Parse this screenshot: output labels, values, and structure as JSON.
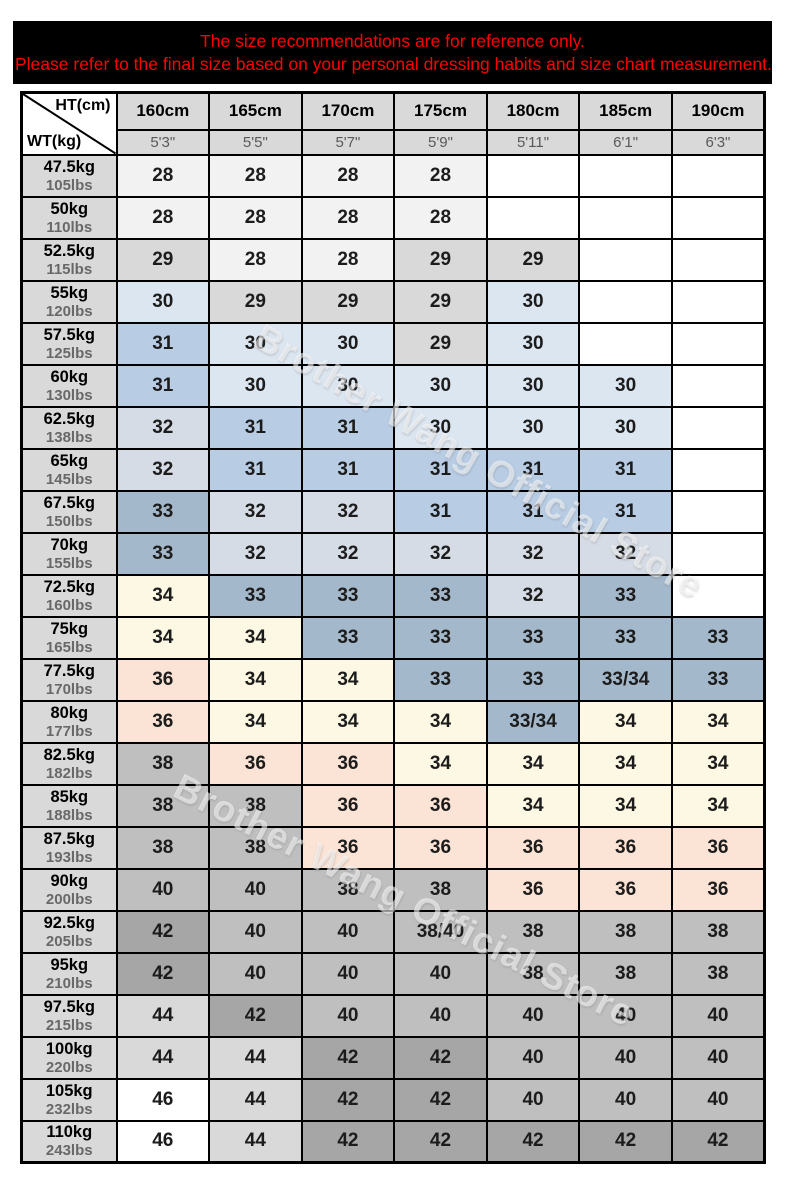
{
  "banner": {
    "line1": "The size recommendations are for reference only.",
    "line2": "Please refer to the final size based on your personal dressing habits and size chart measurement.",
    "bg": "#000000",
    "text_color": "#ff0000"
  },
  "watermark": {
    "text": "Brother Wang Official Store"
  },
  "chart_data": {
    "type": "table",
    "corner": {
      "top_right": "HT(cm)",
      "bottom_left": "WT(kg)"
    },
    "columns_cm": [
      "160cm",
      "165cm",
      "170cm",
      "175cm",
      "180cm",
      "185cm",
      "190cm"
    ],
    "columns_ft": [
      "5'3\"",
      "5'5\"",
      "5'7\"",
      "5'9\"",
      "5'11\"",
      "6'1\"",
      "6'3\""
    ],
    "rows": [
      {
        "kg": "47.5kg",
        "lbs": "105lbs",
        "sizes": [
          "28",
          "28",
          "28",
          "28",
          "",
          "",
          ""
        ]
      },
      {
        "kg": "50kg",
        "lbs": "110lbs",
        "sizes": [
          "28",
          "28",
          "28",
          "28",
          "",
          "",
          ""
        ]
      },
      {
        "kg": "52.5kg",
        "lbs": "115lbs",
        "sizes": [
          "29",
          "28",
          "28",
          "29",
          "29",
          "",
          ""
        ]
      },
      {
        "kg": "55kg",
        "lbs": "120lbs",
        "sizes": [
          "30",
          "29",
          "29",
          "29",
          "30",
          "",
          ""
        ]
      },
      {
        "kg": "57.5kg",
        "lbs": "125lbs",
        "sizes": [
          "31",
          "30",
          "30",
          "29",
          "30",
          "",
          ""
        ]
      },
      {
        "kg": "60kg",
        "lbs": "130lbs",
        "sizes": [
          "31",
          "30",
          "30",
          "30",
          "30",
          "30",
          ""
        ]
      },
      {
        "kg": "62.5kg",
        "lbs": "138lbs",
        "sizes": [
          "32",
          "31",
          "31",
          "30",
          "30",
          "30",
          ""
        ]
      },
      {
        "kg": "65kg",
        "lbs": "145lbs",
        "sizes": [
          "32",
          "31",
          "31",
          "31",
          "31",
          "31",
          ""
        ]
      },
      {
        "kg": "67.5kg",
        "lbs": "150lbs",
        "sizes": [
          "33",
          "32",
          "32",
          "31",
          "31",
          "31",
          ""
        ]
      },
      {
        "kg": "70kg",
        "lbs": "155lbs",
        "sizes": [
          "33",
          "32",
          "32",
          "32",
          "32",
          "32",
          ""
        ]
      },
      {
        "kg": "72.5kg",
        "lbs": "160lbs",
        "sizes": [
          "34",
          "33",
          "33",
          "33",
          "32",
          "33",
          ""
        ]
      },
      {
        "kg": "75kg",
        "lbs": "165lbs",
        "sizes": [
          "34",
          "34",
          "33",
          "33",
          "33",
          "33",
          "33"
        ]
      },
      {
        "kg": "77.5kg",
        "lbs": "170lbs",
        "sizes": [
          "36",
          "34",
          "34",
          "33",
          "33",
          "33/34",
          "33"
        ]
      },
      {
        "kg": "80kg",
        "lbs": "177lbs",
        "sizes": [
          "36",
          "34",
          "34",
          "34",
          "33/34",
          "34",
          "34"
        ]
      },
      {
        "kg": "82.5kg",
        "lbs": "182lbs",
        "sizes": [
          "38",
          "36",
          "36",
          "34",
          "34",
          "34",
          "34"
        ]
      },
      {
        "kg": "85kg",
        "lbs": "188lbs",
        "sizes": [
          "38",
          "38",
          "36",
          "36",
          "34",
          "34",
          "34"
        ]
      },
      {
        "kg": "87.5kg",
        "lbs": "193lbs",
        "sizes": [
          "38",
          "38",
          "36",
          "36",
          "36",
          "36",
          "36"
        ]
      },
      {
        "kg": "90kg",
        "lbs": "200lbs",
        "sizes": [
          "40",
          "40",
          "38",
          "38",
          "36",
          "36",
          "36"
        ]
      },
      {
        "kg": "92.5kg",
        "lbs": "205lbs",
        "sizes": [
          "42",
          "40",
          "40",
          "38/40",
          "38",
          "38",
          "38"
        ]
      },
      {
        "kg": "95kg",
        "lbs": "210lbs",
        "sizes": [
          "42",
          "40",
          "40",
          "40",
          "38",
          "38",
          "38"
        ]
      },
      {
        "kg": "97.5kg",
        "lbs": "215lbs",
        "sizes": [
          "44",
          "42",
          "40",
          "40",
          "40",
          "40",
          "40"
        ]
      },
      {
        "kg": "100kg",
        "lbs": "220lbs",
        "sizes": [
          "44",
          "44",
          "42",
          "42",
          "40",
          "40",
          "40"
        ]
      },
      {
        "kg": "105kg",
        "lbs": "232lbs",
        "sizes": [
          "46",
          "44",
          "42",
          "42",
          "40",
          "40",
          "40"
        ]
      },
      {
        "kg": "110kg",
        "lbs": "243lbs",
        "sizes": [
          "46",
          "44",
          "42",
          "42",
          "42",
          "42",
          "42"
        ]
      }
    ],
    "size_colors": {
      "28": "#f2f2f2",
      "29": "#d9d9d9",
      "30": "#dce6f1",
      "31": "#b8cce4",
      "32": "#d6dce5",
      "33": "#a4b8cb",
      "33/34": "#a4b8cb",
      "34": "#fdf8e3",
      "36": "#fbe3d5",
      "38": "#bfbfbf",
      "38/40": "#bfbfbf",
      "40": "#bfbfbf",
      "42": "#a6a6a6",
      "44": "#d9d9d9",
      "46": "#ffffff",
      "default": "#ffffff"
    }
  }
}
